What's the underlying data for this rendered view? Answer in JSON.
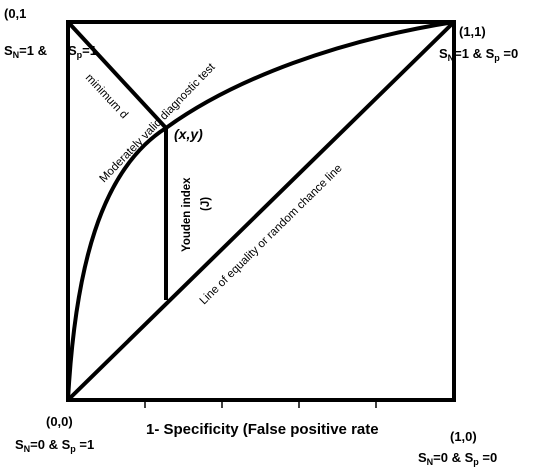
{
  "corners": {
    "top_left": {
      "point": "(0,1",
      "sn_label": "S",
      "sn_sub": "N",
      "sn_val": "=1 &",
      "sp_label": "S",
      "sp_sub": "p",
      "sp_val": "=1"
    },
    "top_right": {
      "point": "(1,1)",
      "sn_label": "S",
      "sn_sub": "N",
      "sn_val": "=1 & S",
      "sp_sub": "p",
      "sp_val": " =0"
    },
    "bottom_left": {
      "point": "(0,0)",
      "sn_label": "S",
      "sn_sub": "N",
      "sn_val": "=0 & S",
      "sp_sub": "p",
      "sp_val": " =1"
    },
    "bottom_right": {
      "point": "(1,0)",
      "sn_label": "S",
      "sn_sub": "N",
      "sn_val": "=0 & S",
      "sp_sub": "p",
      "sp_val": " =0"
    }
  },
  "labels": {
    "curve": "Moderately valid diagnostic test",
    "min_d": "minimum d",
    "point_xy": "(x,y)",
    "youden": "Youden index",
    "youden_j": "(J)",
    "diagonal": "Line of equality or random chance line",
    "x_axis": "1- Specificity (False positive rate"
  }
}
